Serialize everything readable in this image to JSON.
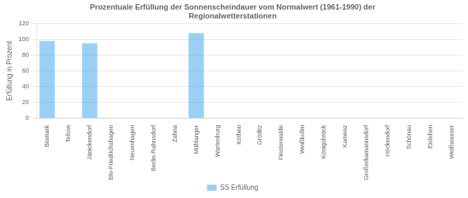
{
  "chart_data": {
    "type": "bar",
    "title": "Prozentuale Erfüllung der Sonnenscheindauer vom Normalwert (1961-1990) der\nRegionalwetterstationen",
    "y_label": "Erfüllung in Prozent",
    "categories": [
      "Bismark",
      "Teltow",
      "Jänickendorf",
      "Bln-Friedrichshagen",
      "Neuenhagen",
      "Berlin-Rahnsdorf",
      "Zahna",
      "Mühlanger",
      "Wartenburg",
      "Köthen",
      "Gröditz",
      "Finsterwalde",
      "Weißkollm",
      "Königsbrück",
      "Kamenz",
      "Großerkamannsdorf",
      "Höckendorf",
      "Schönau",
      "Eisleben",
      "Weißwasser"
    ],
    "series": [
      {
        "name": "SS Erfüllung",
        "values": [
          98,
          0,
          95,
          0,
          0,
          0,
          0,
          108,
          0,
          0,
          0,
          0,
          0,
          0,
          0,
          0,
          0,
          0,
          0,
          0
        ]
      }
    ],
    "ylim": [
      0,
      120
    ],
    "yticks": [
      0,
      20,
      40,
      60,
      80,
      100,
      120
    ],
    "grid": true,
    "legend": "bottom"
  }
}
